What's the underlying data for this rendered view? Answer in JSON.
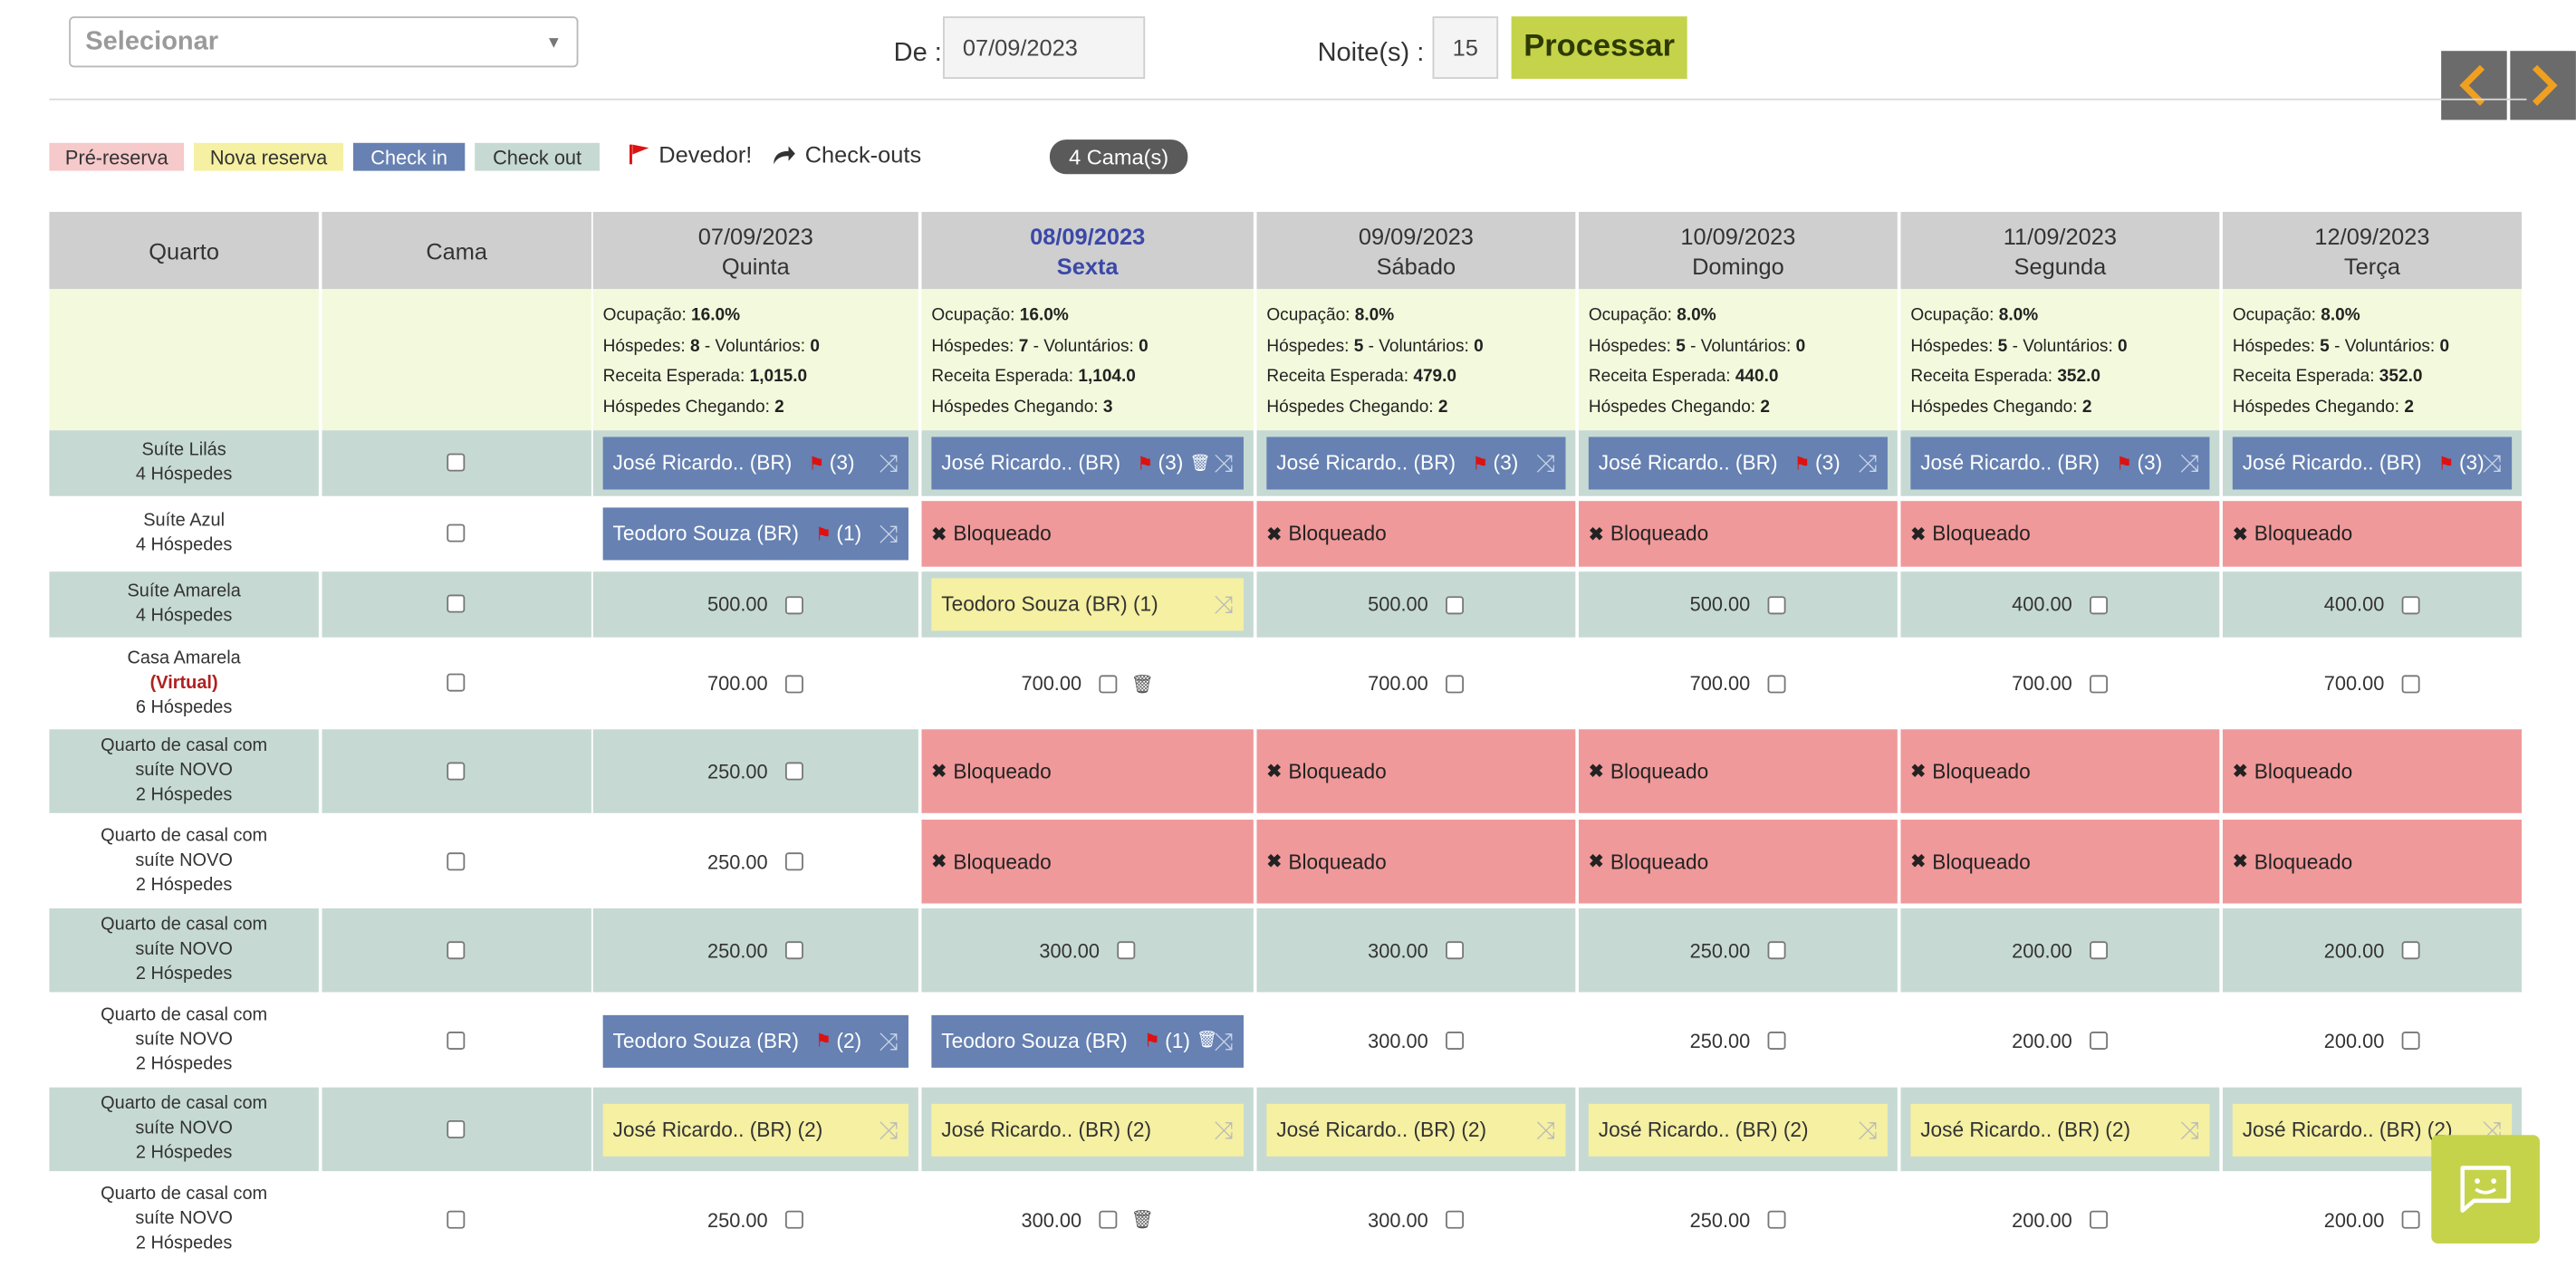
{
  "toolbar": {
    "select_placeholder": "Selecionar",
    "from_label": "De :",
    "from_date": "07/09/2023",
    "nights_label": "Noite(s) :",
    "nights_value": "15",
    "process_label": "Processar"
  },
  "legend": {
    "pre_reserva": "Pré-reserva",
    "nova_reserva": "Nova reserva",
    "check_in": "Check in",
    "check_out": "Check out",
    "devedor": "Devedor!",
    "checkouts": "Check-outs",
    "beds_count": "4 Cama(s)"
  },
  "colors": {
    "pre_reserva": "#f6c9cb",
    "nova_reserva": "#f5f0a2",
    "check_in": "#6681b2",
    "check_out": "#c6dad3",
    "blocked": "#f0999a",
    "accent": "#c5d34b"
  },
  "grid": {
    "header_quarto": "Quarto",
    "header_cama": "Cama",
    "days": [
      {
        "date": "07/09/2023",
        "weekday": "Quinta",
        "ocupacao": "16.0%",
        "hospedes": "8",
        "voluntarios": "0",
        "receita": "1,015.0",
        "chegando": "2",
        "today": false
      },
      {
        "date": "08/09/2023",
        "weekday": "Sexta",
        "ocupacao": "16.0%",
        "hospedes": "7",
        "voluntarios": "0",
        "receita": "1,104.0",
        "chegando": "3",
        "today": true
      },
      {
        "date": "09/09/2023",
        "weekday": "Sábado",
        "ocupacao": "8.0%",
        "hospedes": "5",
        "voluntarios": "0",
        "receita": "479.0",
        "chegando": "2",
        "today": false
      },
      {
        "date": "10/09/2023",
        "weekday": "Domingo",
        "ocupacao": "8.0%",
        "hospedes": "5",
        "voluntarios": "0",
        "receita": "440.0",
        "chegando": "2",
        "today": false
      },
      {
        "date": "11/09/2023",
        "weekday": "Segunda",
        "ocupacao": "8.0%",
        "hospedes": "5",
        "voluntarios": "0",
        "receita": "352.0",
        "chegando": "2",
        "today": false
      },
      {
        "date": "12/09/2023",
        "weekday": "Terça",
        "ocupacao": "8.0%",
        "hospedes": "5",
        "voluntarios": "0",
        "receita": "352.0",
        "chegando": "2",
        "today": false
      }
    ],
    "stat_labels": {
      "ocupacao": "Ocupação:",
      "hospedes": "Hóspedes:",
      "voluntarios": "- Voluntários:",
      "receita": "Receita Esperada:",
      "chegando": "Hóspedes Chegando:"
    },
    "rows": [
      {
        "room": [
          "Suíte Lilás",
          "4 Hóspedes"
        ],
        "virtual": "",
        "cells": [
          {
            "t": "resv",
            "cls": "checkin",
            "label": "José Ricardo.. (BR)",
            "flag": true,
            "count": "(3)"
          },
          {
            "t": "resv",
            "cls": "checkin",
            "label": "José Ricardo.. (BR)",
            "flag": true,
            "count": "(3)",
            "trash": true
          },
          {
            "t": "resv",
            "cls": "checkin",
            "label": "José Ricardo.. (BR)",
            "flag": true,
            "count": "(3)"
          },
          {
            "t": "resv",
            "cls": "checkin",
            "label": "José Ricardo.. (BR)",
            "flag": true,
            "count": "(3)"
          },
          {
            "t": "resv",
            "cls": "checkin",
            "label": "José Ricardo.. (BR)",
            "flag": true,
            "count": "(3)"
          },
          {
            "t": "resv",
            "cls": "checkin",
            "label": "José Ricardo.. (BR)",
            "flag": true,
            "count": "(3)"
          }
        ]
      },
      {
        "room": [
          "Suíte Azul",
          "4 Hóspedes"
        ],
        "virtual": "",
        "cells": [
          {
            "t": "resv",
            "cls": "checkin",
            "label": "Teodoro Souza (BR)",
            "flag": true,
            "count": "(1)"
          },
          {
            "t": "blocked",
            "label": "Bloqueado"
          },
          {
            "t": "blocked",
            "label": "Bloqueado"
          },
          {
            "t": "blocked",
            "label": "Bloqueado"
          },
          {
            "t": "blocked",
            "label": "Bloqueado"
          },
          {
            "t": "blocked",
            "label": "Bloqueado"
          }
        ]
      },
      {
        "room": [
          "Suíte Amarela",
          "4 Hóspedes"
        ],
        "virtual": "",
        "cells": [
          {
            "t": "price",
            "value": "500.00"
          },
          {
            "t": "resv",
            "cls": "nova",
            "label": "Teodoro Souza (BR) (1)",
            "flag": false,
            "count": ""
          },
          {
            "t": "price",
            "value": "500.00"
          },
          {
            "t": "price",
            "value": "500.00"
          },
          {
            "t": "price",
            "value": "400.00"
          },
          {
            "t": "price",
            "value": "400.00"
          }
        ]
      },
      {
        "room": [
          "Casa Amarela",
          "6 Hóspedes"
        ],
        "virtual": "(Virtual)",
        "cells": [
          {
            "t": "price",
            "value": "700.00"
          },
          {
            "t": "price",
            "value": "700.00",
            "trash": true
          },
          {
            "t": "price",
            "value": "700.00"
          },
          {
            "t": "price",
            "value": "700.00"
          },
          {
            "t": "price",
            "value": "700.00"
          },
          {
            "t": "price",
            "value": "700.00"
          }
        ]
      },
      {
        "room": [
          "Quarto de casal com",
          "suíte NOVO",
          "2 Hóspedes"
        ],
        "virtual": "",
        "cells": [
          {
            "t": "price",
            "value": "250.00"
          },
          {
            "t": "blocked",
            "label": "Bloqueado"
          },
          {
            "t": "blocked",
            "label": "Bloqueado"
          },
          {
            "t": "blocked",
            "label": "Bloqueado"
          },
          {
            "t": "blocked",
            "label": "Bloqueado"
          },
          {
            "t": "blocked",
            "label": "Bloqueado"
          }
        ]
      },
      {
        "room": [
          "Quarto de casal com",
          "suíte NOVO",
          "2 Hóspedes"
        ],
        "virtual": "",
        "cells": [
          {
            "t": "price",
            "value": "250.00"
          },
          {
            "t": "blocked",
            "label": "Bloqueado"
          },
          {
            "t": "blocked",
            "label": "Bloqueado"
          },
          {
            "t": "blocked",
            "label": "Bloqueado"
          },
          {
            "t": "blocked",
            "label": "Bloqueado"
          },
          {
            "t": "blocked",
            "label": "Bloqueado"
          }
        ]
      },
      {
        "room": [
          "Quarto de casal com",
          "suíte NOVO",
          "2 Hóspedes"
        ],
        "virtual": "",
        "cells": [
          {
            "t": "price",
            "value": "250.00"
          },
          {
            "t": "price",
            "value": "300.00"
          },
          {
            "t": "price",
            "value": "300.00"
          },
          {
            "t": "price",
            "value": "250.00"
          },
          {
            "t": "price",
            "value": "200.00"
          },
          {
            "t": "price",
            "value": "200.00"
          }
        ]
      },
      {
        "room": [
          "Quarto de casal com",
          "suíte NOVO",
          "2 Hóspedes"
        ],
        "virtual": "",
        "cells": [
          {
            "t": "resv",
            "cls": "checkin",
            "label": "Teodoro Souza (BR)",
            "flag": true,
            "count": "(2)"
          },
          {
            "t": "resv",
            "cls": "checkin",
            "label": "Teodoro Souza (BR)",
            "flag": true,
            "count": "(1)",
            "trash": true
          },
          {
            "t": "price",
            "value": "300.00"
          },
          {
            "t": "price",
            "value": "250.00"
          },
          {
            "t": "price",
            "value": "200.00"
          },
          {
            "t": "price",
            "value": "200.00"
          }
        ]
      },
      {
        "room": [
          "Quarto de casal com",
          "suíte NOVO",
          "2 Hóspedes"
        ],
        "virtual": "",
        "cells": [
          {
            "t": "resv",
            "cls": "nova",
            "label": "José Ricardo.. (BR) (2)",
            "flag": false,
            "count": ""
          },
          {
            "t": "resv",
            "cls": "nova",
            "label": "José Ricardo.. (BR) (2)",
            "flag": false,
            "count": ""
          },
          {
            "t": "resv",
            "cls": "nova",
            "label": "José Ricardo.. (BR) (2)",
            "flag": false,
            "count": ""
          },
          {
            "t": "resv",
            "cls": "nova",
            "label": "José Ricardo.. (BR) (2)",
            "flag": false,
            "count": ""
          },
          {
            "t": "resv",
            "cls": "nova",
            "label": "José Ricardo.. (BR) (2)",
            "flag": false,
            "count": ""
          },
          {
            "t": "resv",
            "cls": "nova",
            "label": "José Ricardo.. (BR) (2)",
            "flag": false,
            "count": ""
          }
        ]
      },
      {
        "room": [
          "Quarto de casal com",
          "suíte NOVO",
          "2 Hóspedes"
        ],
        "virtual": "",
        "cells": [
          {
            "t": "price",
            "value": "250.00"
          },
          {
            "t": "price",
            "value": "300.00",
            "trash": true
          },
          {
            "t": "price",
            "value": "300.00"
          },
          {
            "t": "price",
            "value": "250.00"
          },
          {
            "t": "price",
            "value": "200.00"
          },
          {
            "t": "price",
            "value": "200.00"
          }
        ]
      }
    ]
  }
}
